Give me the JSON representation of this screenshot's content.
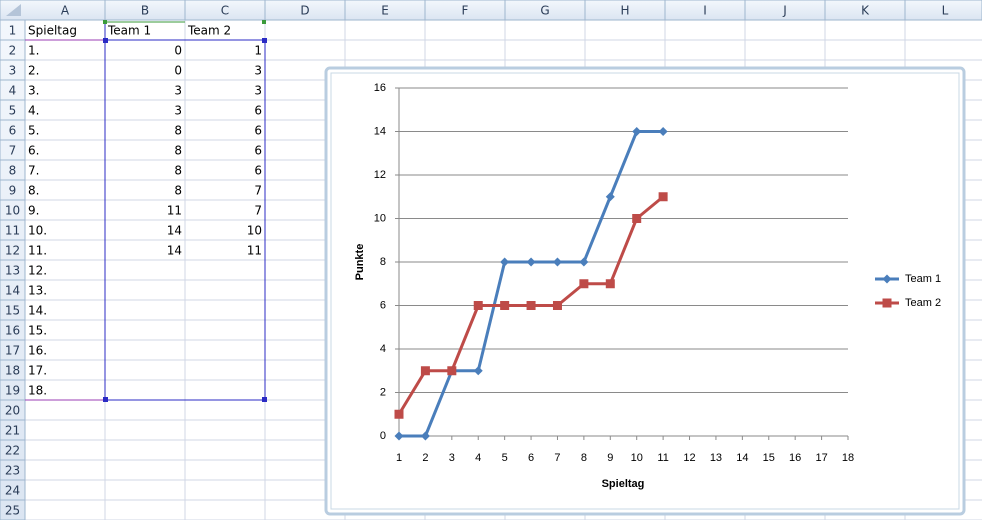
{
  "spreadsheet": {
    "columns": [
      "A",
      "B",
      "C",
      "D",
      "E",
      "F",
      "G",
      "H",
      "I",
      "J",
      "K",
      "L"
    ],
    "rows": [
      1,
      2,
      3,
      4,
      5,
      6,
      7,
      8,
      9,
      10,
      11,
      12,
      13,
      14,
      15,
      16,
      17,
      18,
      19,
      20,
      21,
      22,
      23,
      24,
      25
    ],
    "cells": [
      [
        "Spieltag",
        "Team 1",
        "Team 2"
      ],
      [
        "1.",
        0,
        1
      ],
      [
        "2.",
        0,
        3
      ],
      [
        "3.",
        3,
        3
      ],
      [
        "4.",
        3,
        6
      ],
      [
        "5.",
        8,
        6
      ],
      [
        "6.",
        8,
        6
      ],
      [
        "7.",
        8,
        6
      ],
      [
        "8.",
        8,
        7
      ],
      [
        "9.",
        11,
        7
      ],
      [
        "10.",
        14,
        10
      ],
      [
        "11.",
        14,
        11
      ],
      [
        "12."
      ],
      [
        "13."
      ],
      [
        "14."
      ],
      [
        "15."
      ],
      [
        "16."
      ],
      [
        "17."
      ],
      [
        "18."
      ]
    ]
  },
  "chart_data": {
    "type": "line",
    "x_label": "Spieltag",
    "y_label": "Punkte",
    "categories": [
      1,
      2,
      3,
      4,
      5,
      6,
      7,
      8,
      9,
      10,
      11,
      12,
      13,
      14,
      15,
      16,
      17,
      18
    ],
    "series": [
      {
        "name": "Team 1",
        "color": "#4a7ebb",
        "marker": "diamond",
        "values": [
          0,
          0,
          3,
          3,
          8,
          8,
          8,
          8,
          11,
          14,
          14,
          null,
          null,
          null,
          null,
          null,
          null,
          null
        ]
      },
      {
        "name": "Team 2",
        "color": "#be4b48",
        "marker": "square",
        "values": [
          1,
          3,
          3,
          6,
          6,
          6,
          6,
          7,
          7,
          10,
          11,
          null,
          null,
          null,
          null,
          null,
          null,
          null
        ]
      }
    ],
    "ylim": [
      0,
      16
    ],
    "yticks": [
      0,
      2,
      4,
      6,
      8,
      10,
      12,
      14,
      16
    ],
    "grid": true,
    "legend": "right"
  }
}
